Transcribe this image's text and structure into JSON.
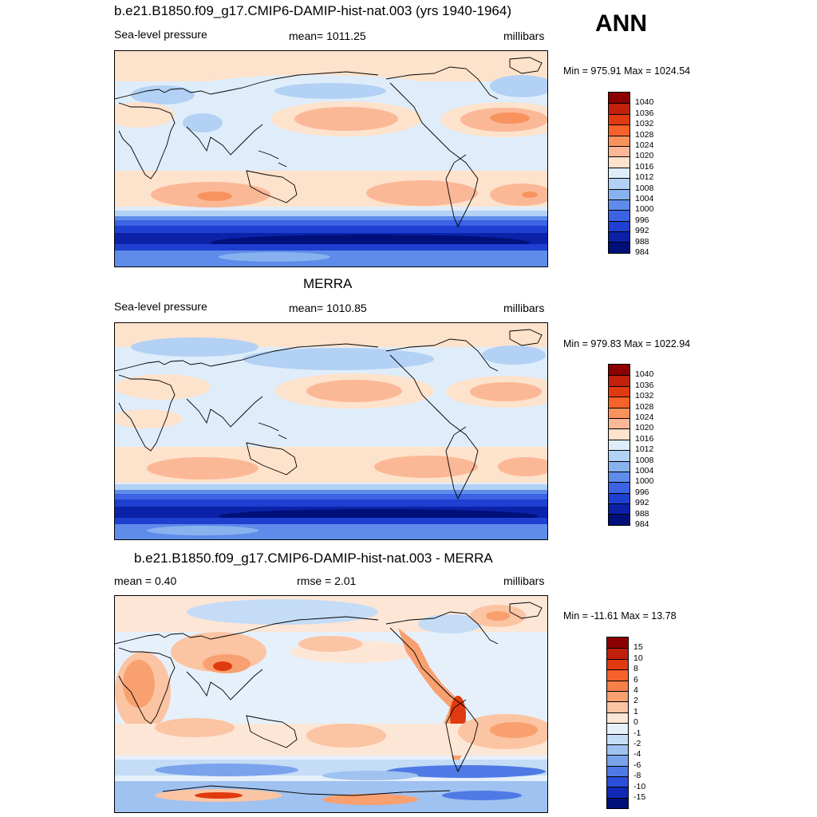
{
  "ann_label": "ANN",
  "panels": [
    {
      "title": "b.e21.B1850.f09_g17.CMIP6-DAMIP-hist-nat.003 (yrs 1940-1964)",
      "left": "Sea-level pressure",
      "center": "mean= 1011.25",
      "right": "millibars",
      "minmax": "Min = 975.91 Max = 1024.54",
      "colorbar": {
        "colors": [
          "#8b0000",
          "#c0200c",
          "#e03a10",
          "#f5622a",
          "#f9935e",
          "#fbb896",
          "#fde2cc",
          "#dfedfa",
          "#b3d1f4",
          "#88b2ee",
          "#5f8cea",
          "#3c63e4",
          "#1f3fd1",
          "#0b22a8",
          "#00107a"
        ],
        "labels": [
          "1040",
          "1036",
          "1032",
          "1028",
          "1024",
          "1020",
          "1016",
          "1012",
          "1008",
          "1004",
          "1000",
          "996",
          "992",
          "988",
          "984"
        ]
      }
    },
    {
      "title": "MERRA",
      "left": "Sea-level pressure",
      "center": "mean= 1010.85",
      "right": "millibars",
      "minmax": "Min = 979.83 Max = 1022.94",
      "colorbar": {
        "colors": [
          "#8b0000",
          "#c0200c",
          "#e03a10",
          "#f5622a",
          "#f9935e",
          "#fbb896",
          "#fde2cc",
          "#dfedfa",
          "#b3d1f4",
          "#88b2ee",
          "#5f8cea",
          "#3c63e4",
          "#1f3fd1",
          "#0b22a8",
          "#00107a"
        ],
        "labels": [
          "1040",
          "1036",
          "1032",
          "1028",
          "1024",
          "1020",
          "1016",
          "1012",
          "1008",
          "1004",
          "1000",
          "996",
          "992",
          "988",
          "984"
        ]
      }
    },
    {
      "title": "b.e21.B1850.f09_g17.CMIP6-DAMIP-hist-nat.003 - MERRA",
      "left": "mean =   0.40",
      "center": "rmse =   2.01",
      "right": "millibars",
      "minmax": "Min = -11.61 Max =  13.78",
      "colorbar": {
        "colors": [
          "#8b0000",
          "#c0200c",
          "#e03a10",
          "#f5622a",
          "#f7804a",
          "#f9a070",
          "#fbc4a2",
          "#fde6d6",
          "#e6f0fb",
          "#c4dcf6",
          "#a0c2f1",
          "#7aa3ec",
          "#4f7ae6",
          "#2a4ed8",
          "#1128b4",
          "#00107a"
        ],
        "labels": [
          "15",
          "10",
          "8",
          "6",
          "4",
          "2",
          "1",
          "0",
          "-1",
          "-2",
          "-4",
          "-6",
          "-8",
          "-10",
          "-15"
        ]
      }
    }
  ]
}
